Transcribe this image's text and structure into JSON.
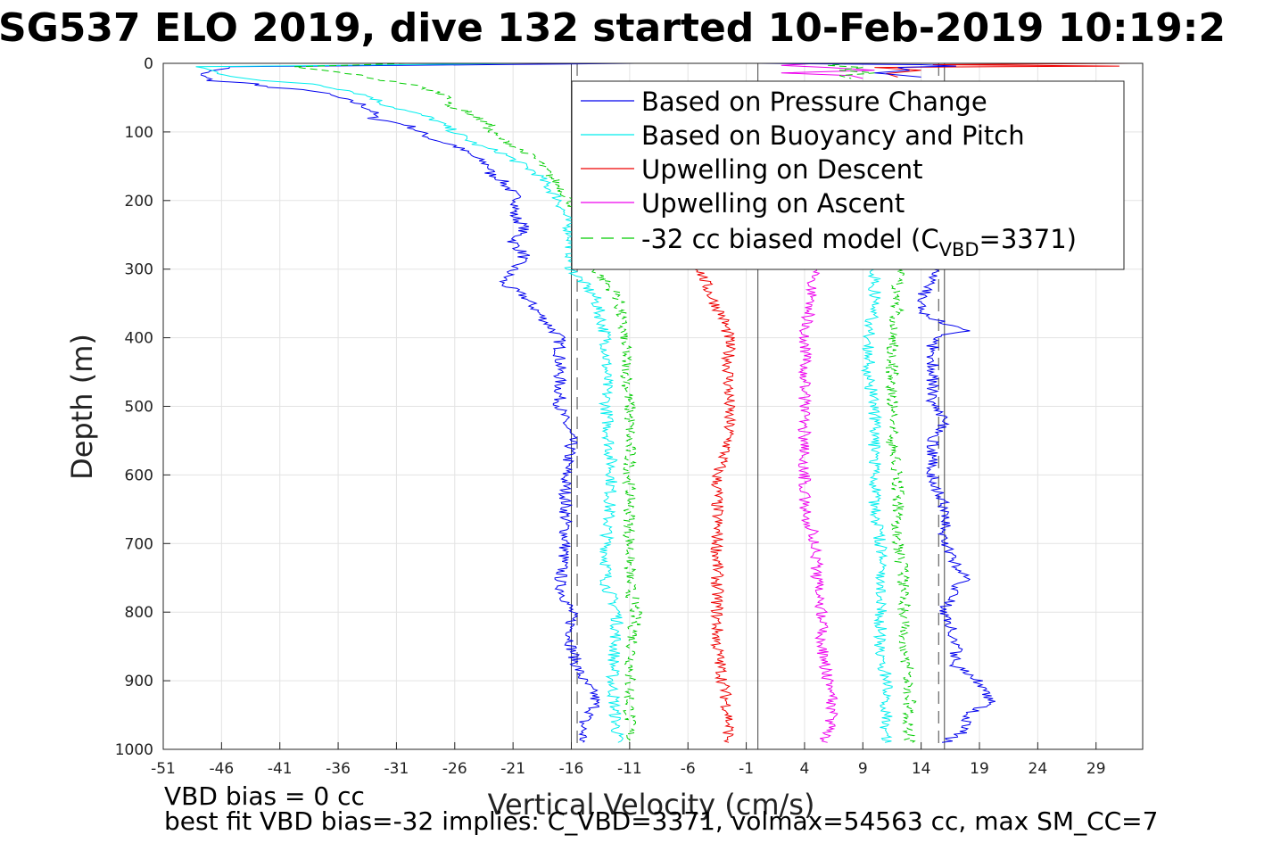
{
  "chart_data": {
    "type": "line",
    "title": "SG537 ELO 2019, dive 132 started 10-Feb-2019 10:19:2",
    "xlabel": "Vertical Velocity (cm/s)",
    "ylabel": "Depth (m)",
    "xlim": [
      -51,
      33
    ],
    "ylim": [
      0,
      1000
    ],
    "y_reversed": true,
    "xticks": [
      -51,
      -46,
      -41,
      -36,
      -31,
      -26,
      -21,
      -16,
      -11,
      -6,
      -1,
      4,
      9,
      14,
      19,
      24,
      29
    ],
    "yticks": [
      0,
      100,
      200,
      300,
      400,
      500,
      600,
      700,
      800,
      900,
      1000
    ],
    "grid": true,
    "legend_position": "top-right",
    "legend": {
      "items": [
        {
          "label": "Based on Pressure Change",
          "color": "#0000ee",
          "dash": "solid"
        },
        {
          "label": "Based on Buoyancy and Pitch",
          "color": "#00eeee",
          "dash": "solid"
        },
        {
          "label": "Upwelling on Descent",
          "color": "#ee0000",
          "dash": "solid"
        },
        {
          "label": "Upwelling on Ascent",
          "color": "#ee00ee",
          "dash": "solid"
        },
        {
          "label_prefix": "-32 cc biased model (C",
          "label_sub": "VBD",
          "label_suffix": "=3371)",
          "color": "#00cc00",
          "dash": "dashed"
        }
      ]
    },
    "series": [
      {
        "name": "Based on Pressure Change",
        "color": "#0000ee",
        "dash": "solid",
        "phase": "descent",
        "depth": [
          0,
          5,
          15,
          25,
          30,
          35,
          40,
          50,
          60,
          70,
          80,
          90,
          100,
          110,
          120,
          130,
          140,
          150,
          160,
          170,
          180,
          190,
          200,
          220,
          240,
          260,
          280,
          300,
          320,
          330,
          340,
          360,
          380,
          400,
          450,
          500,
          550,
          600,
          650,
          700,
          760,
          800,
          850,
          880,
          900,
          920,
          940,
          960,
          980,
          990
        ],
        "velocity": [
          -10,
          -45,
          -48,
          -47,
          -43,
          -42,
          -38,
          -36,
          -34,
          -33,
          -33,
          -30,
          -29,
          -28,
          -26,
          -25,
          -24,
          -23,
          -23,
          -22,
          -21.5,
          -21,
          -20.5,
          -21,
          -20,
          -21,
          -20,
          -21,
          -22,
          -21,
          -20,
          -19,
          -18,
          -17,
          -17,
          -17,
          -16,
          -16.5,
          -16.5,
          -16.5,
          -17,
          -16,
          -16,
          -15.5,
          -15,
          -14,
          -14,
          -15,
          -15,
          -15
        ]
      },
      {
        "name": "Based on Buoyancy and Pitch",
        "color": "#00eeee",
        "dash": "solid",
        "phase": "descent",
        "depth": [
          0,
          5,
          15,
          25,
          30,
          40,
          50,
          60,
          70,
          80,
          90,
          100,
          110,
          120,
          130,
          140,
          150,
          160,
          180,
          200,
          250,
          300,
          340,
          400,
          500,
          600,
          700,
          760,
          800,
          900,
          990
        ],
        "velocity": [
          -20,
          -48,
          -46,
          -43,
          -38,
          -35,
          -33,
          -32,
          -30,
          -28,
          -27,
          -26,
          -25,
          -24,
          -22,
          -21,
          -20,
          -19,
          -18,
          -17,
          -16,
          -16,
          -14,
          -13,
          -13,
          -12.5,
          -13,
          -13,
          -12,
          -12.5,
          -12
        ]
      },
      {
        "name": "-32 cc biased model (C_VBD=3371)",
        "color": "#00cc00",
        "dash": "dashed",
        "phase": "descent",
        "depth": [
          0,
          5,
          15,
          25,
          30,
          40,
          50,
          60,
          70,
          80,
          90,
          100,
          110,
          120,
          140,
          160,
          180,
          200,
          250,
          300,
          340,
          400,
          500,
          600,
          700,
          760,
          800,
          900,
          990
        ],
        "velocity": [
          -30,
          -40,
          -35,
          -32,
          -30,
          -28,
          -26,
          -27,
          -25,
          -24,
          -23,
          -23,
          -22,
          -21,
          -19,
          -18,
          -17,
          -16,
          -15,
          -14,
          -12,
          -11.5,
          -11,
          -11,
          -11,
          -11,
          -10.5,
          -11,
          -11
        ]
      },
      {
        "name": "Upwelling on Descent",
        "color": "#ee0000",
        "dash": "solid",
        "phase": "descent",
        "depth": [
          300,
          340,
          370,
          400,
          450,
          500,
          550,
          600,
          650,
          700,
          750,
          800,
          850,
          900,
          950,
          990
        ],
        "velocity": [
          -5,
          -4,
          -3,
          -2.5,
          -2.5,
          -2.5,
          -2.5,
          -3.5,
          -3.5,
          -3.5,
          -3.5,
          -3.5,
          -3.5,
          -3,
          -2.5,
          -2.5
        ]
      },
      {
        "name": "Upwelling on Ascent",
        "color": "#ee00ee",
        "dash": "solid",
        "phase": "ascent",
        "depth": [
          990,
          950,
          900,
          850,
          800,
          750,
          700,
          650,
          600,
          550,
          500,
          450,
          400,
          350,
          300
        ],
        "velocity": [
          5.5,
          6.5,
          6,
          5.5,
          5.5,
          5,
          5,
          4,
          4,
          4,
          4,
          4,
          4,
          4.5,
          5
        ]
      },
      {
        "name": "Based on Buoyancy and Pitch",
        "color": "#00eeee",
        "dash": "solid",
        "phase": "ascent",
        "depth": [
          990,
          950,
          900,
          850,
          800,
          750,
          700,
          650,
          600,
          550,
          500,
          450,
          400,
          350,
          300
        ],
        "velocity": [
          11,
          11,
          11,
          10.5,
          10.5,
          10.5,
          10.5,
          10,
          10,
          10,
          10,
          9.5,
          9.5,
          10,
          10
        ]
      },
      {
        "name": "-32 cc biased model (C_VBD=3371)",
        "color": "#00cc00",
        "dash": "dashed",
        "phase": "ascent",
        "depth": [
          990,
          950,
          900,
          850,
          800,
          750,
          700,
          650,
          600,
          550,
          500,
          450,
          400,
          350,
          300
        ],
        "velocity": [
          13,
          13,
          13,
          12.5,
          12.5,
          12.5,
          12,
          12,
          12,
          11.5,
          11.5,
          11.5,
          11.5,
          12,
          12
        ]
      },
      {
        "name": "Based on Pressure Change",
        "color": "#0000ee",
        "dash": "solid",
        "phase": "ascent",
        "depth": [
          990,
          970,
          950,
          930,
          910,
          900,
          880,
          860,
          840,
          800,
          760,
          750,
          730,
          700,
          650,
          600,
          550,
          520,
          500,
          450,
          400,
          390,
          380,
          360,
          340,
          320,
          300
        ],
        "velocity": [
          16,
          18,
          18,
          20,
          19,
          19,
          17,
          17,
          17,
          16,
          17,
          18,
          17,
          16,
          16,
          15,
          15,
          16,
          15,
          15,
          15,
          18,
          16,
          14,
          14,
          15,
          15
        ]
      },
      {
        "name": "Upwelling on Ascent",
        "color": "#ee00ee",
        "dash": "solid",
        "phase": "near-surface",
        "depth": [
          0,
          3,
          6,
          10,
          14,
          18,
          22
        ],
        "velocity": [
          5,
          2,
          6,
          10,
          2,
          8,
          9
        ]
      },
      {
        "name": "-32 cc biased model (C_VBD=3371)",
        "color": "#00cc00",
        "dash": "dashed",
        "phase": "near-surface",
        "depth": [
          0,
          3,
          6,
          10,
          14,
          18,
          22
        ],
        "velocity": [
          8,
          6,
          9,
          7,
          10,
          7,
          8
        ]
      },
      {
        "name": "Upwelling on Descent",
        "color": "#ee0000",
        "dash": "solid",
        "phase": "near-surface",
        "depth": [
          0,
          2,
          4,
          6,
          10,
          15,
          20
        ],
        "velocity": [
          32,
          15,
          31,
          10,
          14,
          11,
          12
        ]
      },
      {
        "name": "Based on Pressure Change",
        "color": "#0000ee",
        "dash": "solid",
        "phase": "near-surface",
        "depth": [
          0,
          2,
          4,
          6,
          10,
          14,
          20
        ],
        "velocity": [
          0,
          14,
          17,
          12,
          13,
          10,
          14
        ]
      }
    ],
    "reference_lines": [
      {
        "x": -15.5,
        "dash": "dashed",
        "color": "#444444"
      },
      {
        "x": 15.5,
        "dash": "dashed",
        "color": "#444444"
      },
      {
        "x": 0,
        "dash": "solid",
        "color": "#444444"
      },
      {
        "x": -16,
        "dash": "solid",
        "color": "#444444"
      },
      {
        "x": 16,
        "dash": "solid",
        "color": "#444444"
      }
    ]
  },
  "notes": {
    "line1": "VBD bias = 0 cc",
    "line2": "best fit VBD bias=-32 implies: C_VBD=3371, volmax=54563 cc, max SM_CC=7"
  }
}
